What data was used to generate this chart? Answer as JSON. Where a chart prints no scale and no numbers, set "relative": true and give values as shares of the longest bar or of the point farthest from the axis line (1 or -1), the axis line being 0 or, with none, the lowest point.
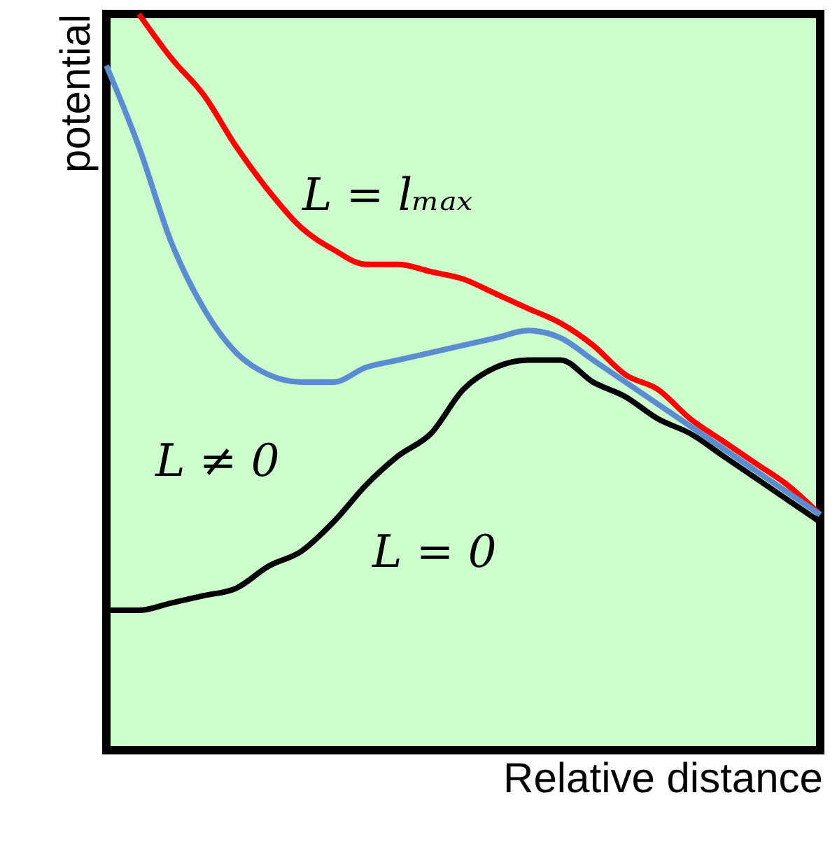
{
  "chart_data": {
    "type": "line",
    "relative": true,
    "xlabel": "Relative distance",
    "ylabel": "potential",
    "categories": [
      null,
      null,
      null,
      null,
      null,
      null,
      null,
      null,
      null,
      null,
      null,
      null,
      null,
      null,
      null,
      null,
      null,
      null,
      null,
      null,
      null,
      null,
      null
    ],
    "series": [
      {
        "name": "L = lₘₐₓ",
        "color": "#ff0000",
        "values": [
          null,
          1.0,
          0.94,
          0.89,
          0.82,
          0.76,
          0.71,
          0.68,
          0.66,
          0.66,
          0.65,
          0.64,
          0.62,
          0.6,
          0.58,
          0.55,
          0.51,
          0.49,
          0.45,
          0.42,
          0.39,
          0.36,
          0.32
        ]
      },
      {
        "name": "L ≠ 0",
        "color": "#5b8bd0",
        "values": [
          0.93,
          0.82,
          0.69,
          0.6,
          0.54,
          0.51,
          0.5,
          0.5,
          0.52,
          0.53,
          0.54,
          0.55,
          0.56,
          0.57,
          0.56,
          0.53,
          0.5,
          0.47,
          0.44,
          0.41,
          0.38,
          0.35,
          0.32
        ]
      },
      {
        "name": "L = 0",
        "color": "#000000",
        "values": [
          0.19,
          0.19,
          0.2,
          0.21,
          0.22,
          0.25,
          0.27,
          0.31,
          0.36,
          0.4,
          0.43,
          0.49,
          0.52,
          0.53,
          0.53,
          0.5,
          0.48,
          0.45,
          0.43,
          0.4,
          0.37,
          0.34,
          0.31
        ]
      }
    ]
  }
}
